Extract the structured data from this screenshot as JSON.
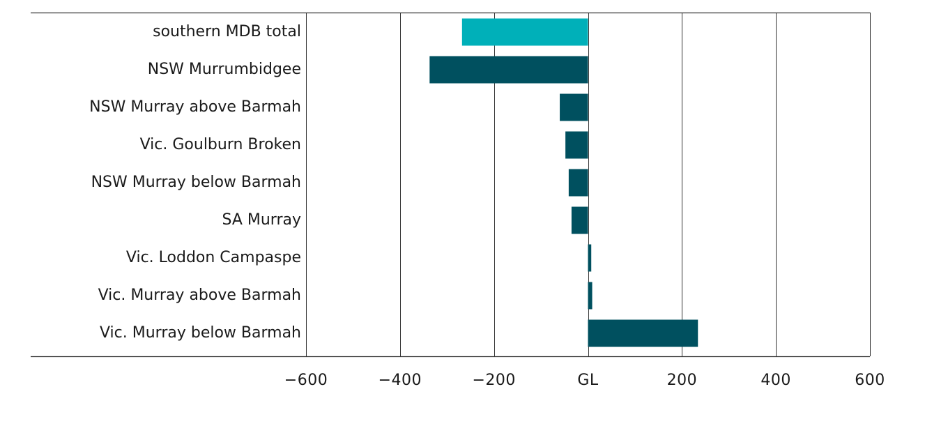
{
  "chart_data": {
    "type": "bar",
    "orientation": "horizontal",
    "categories": [
      "southern MDB total",
      "NSW Murrumbidgee",
      "NSW Murray above Barmah",
      "Vic. Goulburn Broken",
      "NSW Murray below Barmah",
      "SA Murray",
      "Vic. Loddon Campaspe",
      "Vic. Murray above Barmah",
      "Vic. Murray below Barmah"
    ],
    "values": [
      -268,
      -337,
      -60,
      -48,
      -41,
      -35,
      7,
      9,
      234
    ],
    "highlight_index": 0,
    "colors": {
      "highlight": "#00b0b9",
      "bar": "#00505f",
      "grid": "#333333",
      "text": "#1a1a1a"
    },
    "xlim": [
      -600,
      600
    ],
    "x_ticks": [
      -600,
      -400,
      -200,
      0,
      200,
      400,
      600
    ],
    "x_tick_labels": [
      "−600",
      "−400",
      "−200",
      "GL",
      "200",
      "400",
      "600"
    ],
    "grid": true,
    "title": "",
    "xlabel": "",
    "ylabel": ""
  }
}
